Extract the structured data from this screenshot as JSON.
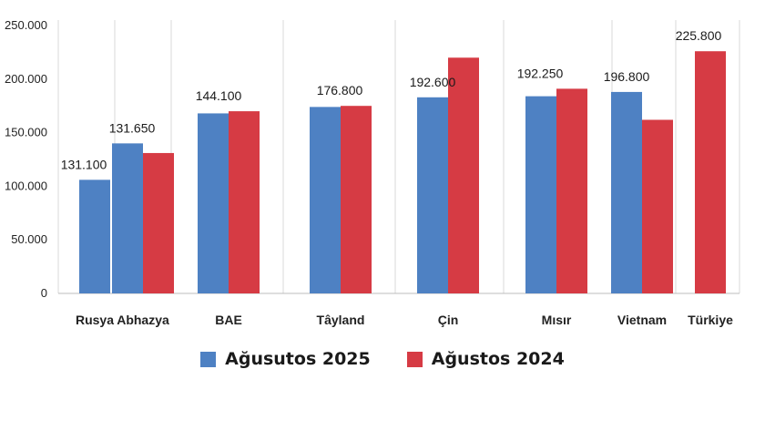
{
  "chart_data": {
    "type": "bar",
    "title": "",
    "xlabel": "",
    "ylabel": "",
    "ylim": [
      0,
      250000
    ],
    "yticks": [
      0,
      50000,
      100000,
      150000,
      200000,
      250000
    ],
    "ytick_labels": [
      "0",
      "50.000",
      "100.000",
      "150.000",
      "200.000",
      "250.000"
    ],
    "grid": "vertical",
    "legend_position": "bottom",
    "categories": [
      "Rusya",
      "Abhazya",
      "BAE",
      "Tâyland",
      "Çin",
      "Mısır",
      "Vietnam",
      "Türkiye"
    ],
    "series": [
      {
        "name": "Ağusutos 2025",
        "color": "#4e81c3",
        "values": [
          106000,
          140000,
          168000,
          174000,
          183000,
          184000,
          188000,
          null
        ]
      },
      {
        "name": "Ağustos 2024",
        "color": "#d63b44",
        "values": [
          null,
          131000,
          170000,
          175000,
          220000,
          191000,
          162000,
          226000
        ]
      }
    ],
    "data_labels": [
      "131.100",
      "131.650",
      "144.100",
      "176.800",
      "192.600",
      "192.250",
      "196.800",
      "225.800"
    ]
  }
}
